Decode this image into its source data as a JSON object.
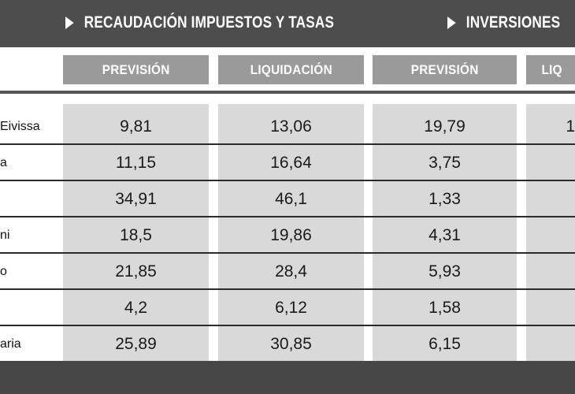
{
  "header": {
    "group1_title": "RECAUDACIÓN IMPUESTOS Y TASAS",
    "group2_title": "INVERSIONES"
  },
  "columns": {
    "c1": "PREVISIÓN",
    "c2": "LIQUIDACIÓN",
    "c3": "PREVISIÓN",
    "c4": "LIQ"
  },
  "rows": [
    {
      "name": "Eivissa",
      "v1": "9,81",
      "v2": "13,06",
      "v3": "19,79",
      "v4": "1"
    },
    {
      "name": "a",
      "v1": "11,15",
      "v2": "16,64",
      "v3": "3,75",
      "v4": ""
    },
    {
      "name": "",
      "v1": "34,91",
      "v2": "46,1",
      "v3": "1,33",
      "v4": ""
    },
    {
      "name": "ni",
      "v1": "18,5",
      "v2": "19,86",
      "v3": "4,31",
      "v4": ""
    },
    {
      "name": "o",
      "v1": "21,85",
      "v2": "28,4",
      "v3": "5,93",
      "v4": ""
    },
    {
      "name": "",
      "v1": "4,2",
      "v2": "6,12",
      "v3": "1,58",
      "v4": ""
    },
    {
      "name": "aria",
      "v1": "25,89",
      "v2": "30,85",
      "v3": "6,15",
      "v4": ""
    }
  ]
}
